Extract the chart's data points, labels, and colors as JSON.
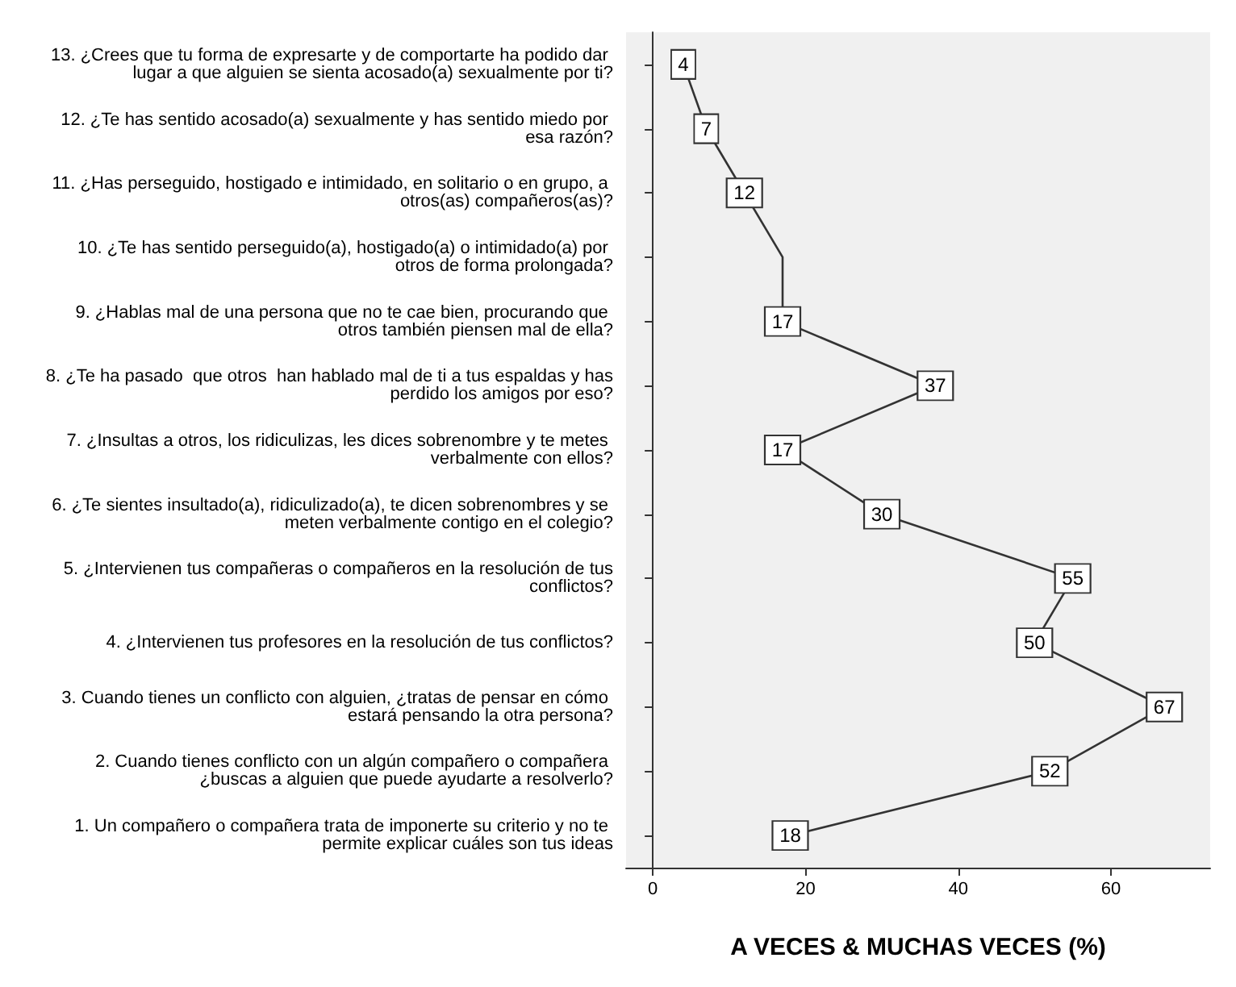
{
  "chart_data": {
    "type": "line",
    "orientation": "horizontal",
    "xlabel": "A VECES & MUCHAS VECES (%)",
    "categories": [
      "13. ¿Crees que tu forma de expresarte y de comportarte ha podido dar lugar a que alguien se sienta acosado(a) sexualmente por ti?",
      "12. ¿Te has sentido acosado(a) sexualmente y has sentido miedo por esa razón?",
      "11. ¿Has perseguido, hostigado e intimidado, en solitario o en grupo, a otros(as) compañeros(as)?",
      "10. ¿Te has sentido perseguido(a), hostigado(a) o intimidado(a) por otros de forma prolongada?",
      "9. ¿Hablas mal de una persona que no te cae bien, procurando que otros también piensen mal de ella?",
      "8. ¿Te ha pasado  que otros  han hablado mal de ti a tus espaldas y has perdido los amigos por eso?",
      "7. ¿Insultas a otros, los ridiculizas, les dices sobrenombre y te metes verbalmente con ellos?",
      "6. ¿Te sientes insultado(a), ridiculizado(a), te dicen sobrenombres y se meten verbalmente contigo en el colegio?",
      "5. ¿Intervienen tus compañeras o compañeros en la resolución de tus conflictos?",
      "4. ¿Intervienen tus profesores en la resolución de tus conflictos?",
      "3. Cuando tienes un conflicto con alguien, ¿tratas de pensar en cómo estará pensando la otra persona?",
      "2. Cuando tienes conflicto con un algún compañero o compañera ¿buscas a alguien que puede ayudarte a resolverlo?",
      "1. Un compañero o compañera trata de imponerte su criterio y no te permite explicar cuáles son tus ideas"
    ],
    "values": [
      4,
      7,
      12,
      17,
      17,
      37,
      17,
      30,
      55,
      50,
      67,
      52,
      18
    ],
    "value_labels": [
      "4",
      "7",
      "12",
      null,
      "17",
      "37",
      "17",
      "30",
      "55",
      "50",
      "67",
      "52",
      "18"
    ],
    "color": "#333333",
    "marker": "square",
    "line_style": "solid",
    "xlim": [
      -3.5,
      73
    ],
    "xticks": [
      0,
      20,
      40,
      60
    ]
  }
}
